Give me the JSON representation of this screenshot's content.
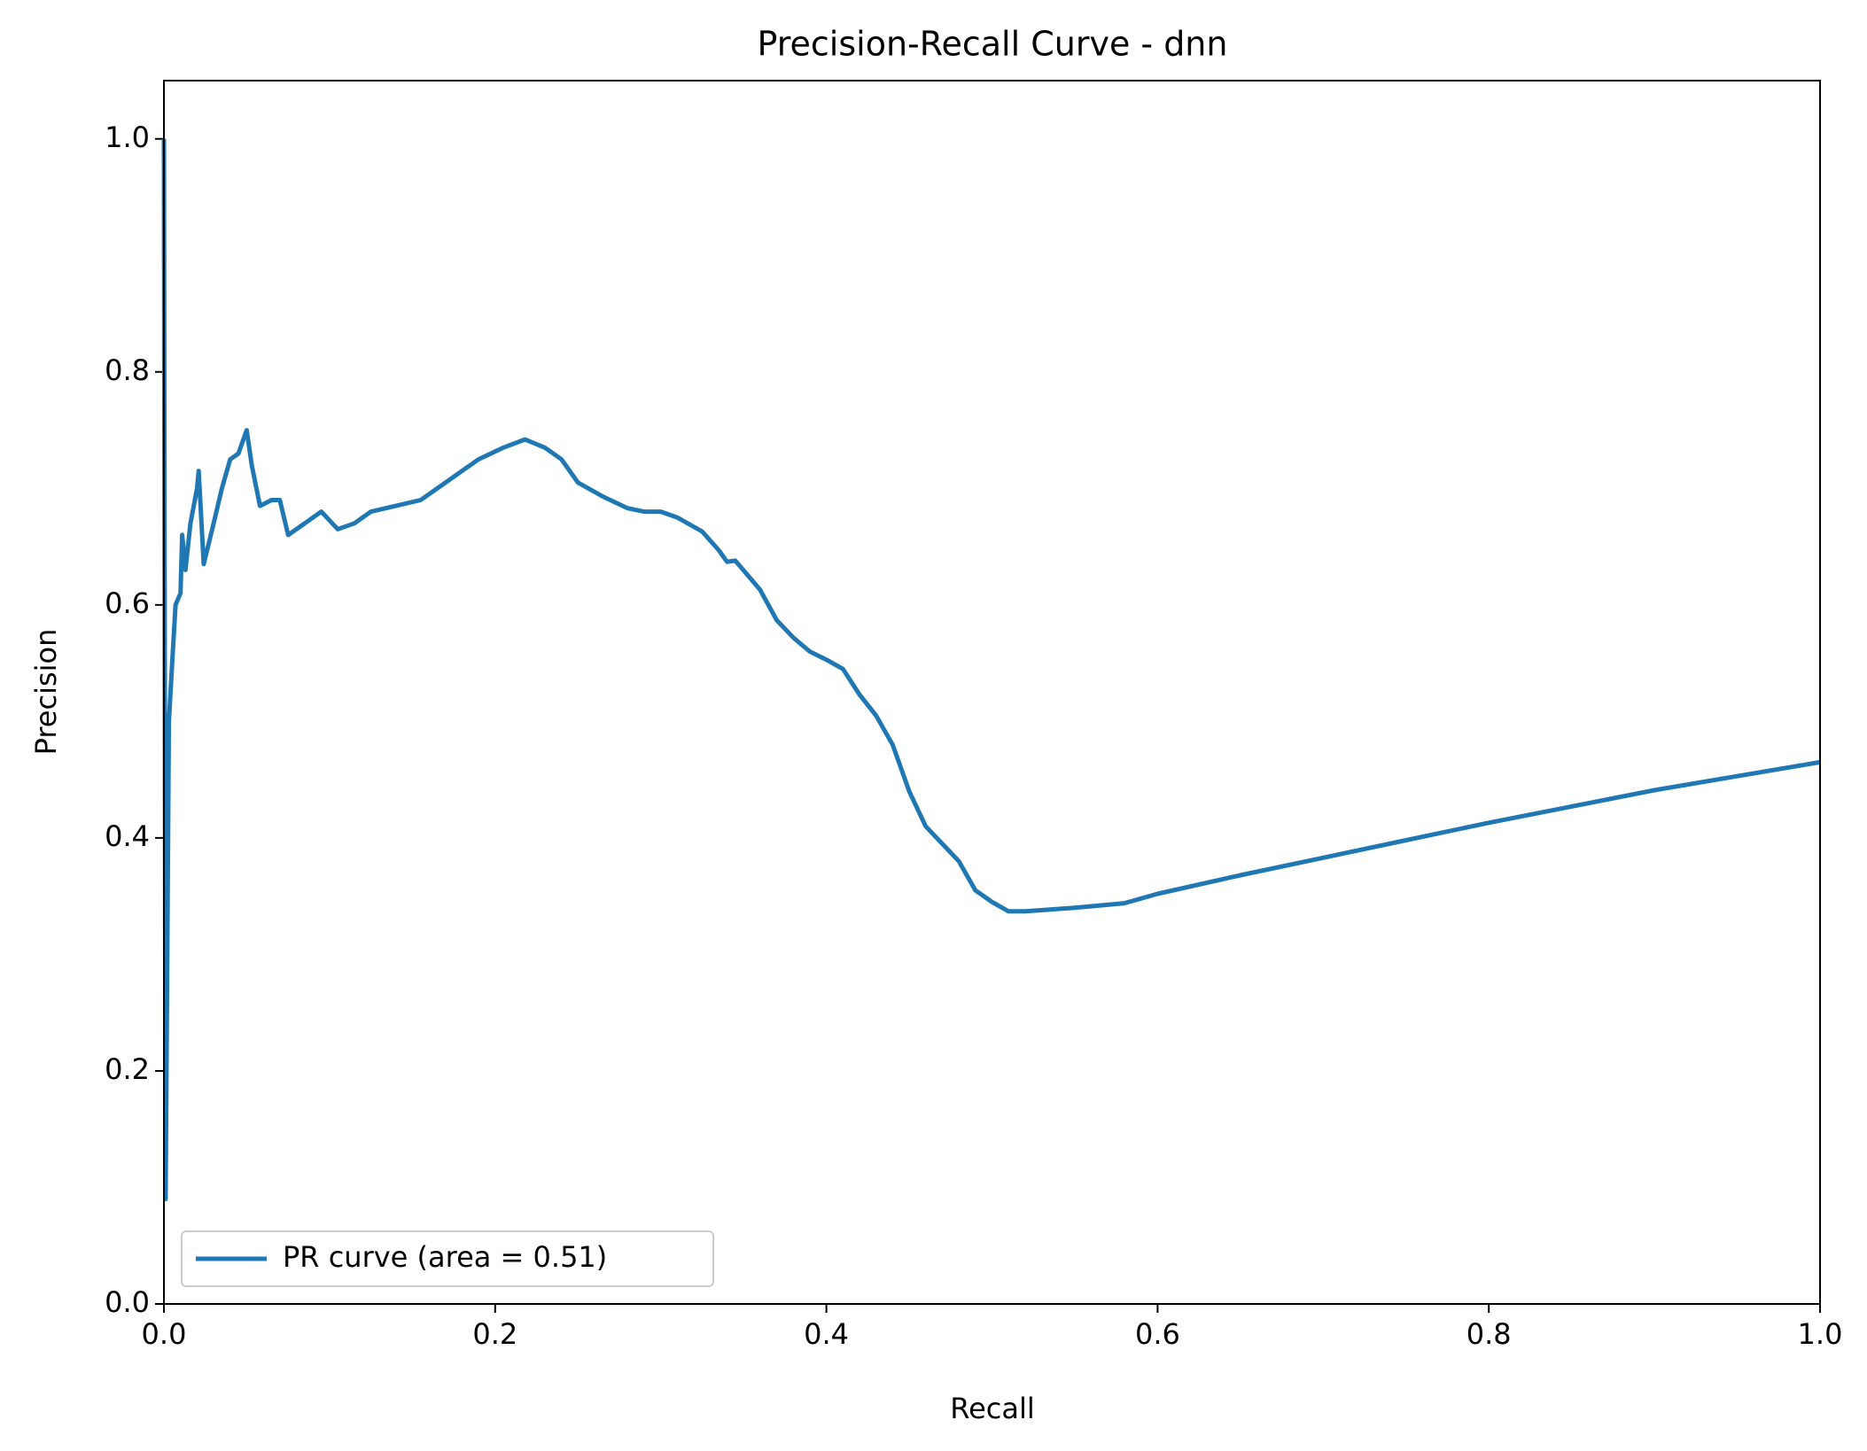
{
  "chart_data": {
    "type": "line",
    "title": "Precision-Recall Curve - dnn",
    "xlabel": "Recall",
    "ylabel": "Precision",
    "xlim": [
      0,
      1
    ],
    "ylim": [
      0,
      1.05
    ],
    "xticks": [
      {
        "value": 0,
        "label": "0.0"
      },
      0.2,
      0.4,
      0.6,
      0.8,
      {
        "value": 1,
        "label": "1.0"
      }
    ],
    "yticks": [
      {
        "value": 0,
        "label": "0.0"
      },
      0.2,
      0.4,
      0.6,
      0.8,
      {
        "value": 1,
        "label": "1.0"
      }
    ],
    "legend": "lower left",
    "grid": false,
    "series": [
      {
        "name": "PR curve (area = 0.51)",
        "color": "#1f77b4",
        "x": [
          0,
          0.001,
          0.003,
          0.005,
          0.007,
          0.01,
          0.011,
          0.013,
          0.016,
          0.02,
          0.021,
          0.024,
          0.03,
          0.035,
          0.04,
          0.045,
          0.05,
          0.053,
          0.058,
          0.065,
          0.07,
          0.075,
          0.085,
          0.095,
          0.105,
          0.115,
          0.125,
          0.14,
          0.155,
          0.17,
          0.19,
          0.205,
          0.218,
          0.23,
          0.24,
          0.25,
          0.265,
          0.28,
          0.29,
          0.3,
          0.31,
          0.325,
          0.335,
          0.34,
          0.345,
          0.36,
          0.37,
          0.38,
          0.39,
          0.4,
          0.41,
          0.42,
          0.43,
          0.44,
          0.45,
          0.46,
          0.47,
          0.48,
          0.49,
          0.5,
          0.51,
          0.52,
          0.55,
          0.58,
          0.6,
          0.65,
          0.7,
          0.75,
          0.8,
          0.85,
          0.9,
          0.95,
          1.0
        ],
        "values": [
          1.0,
          0.09,
          0.5,
          0.55,
          0.6,
          0.61,
          0.66,
          0.63,
          0.67,
          0.7,
          0.715,
          0.635,
          0.67,
          0.7,
          0.725,
          0.73,
          0.75,
          0.72,
          0.685,
          0.69,
          0.69,
          0.66,
          0.67,
          0.68,
          0.665,
          0.67,
          0.68,
          0.685,
          0.69,
          0.705,
          0.725,
          0.735,
          0.742,
          0.735,
          0.725,
          0.705,
          0.693,
          0.683,
          0.68,
          0.68,
          0.675,
          0.663,
          0.647,
          0.637,
          0.638,
          0.613,
          0.587,
          0.572,
          0.56,
          0.553,
          0.545,
          0.523,
          0.505,
          0.48,
          0.44,
          0.41,
          0.395,
          0.38,
          0.355,
          0.345,
          0.337,
          0.337,
          0.34,
          0.344,
          0.352,
          0.368,
          0.383,
          0.398,
          0.413,
          0.427,
          0.441,
          0.453,
          0.465
        ]
      }
    ]
  }
}
